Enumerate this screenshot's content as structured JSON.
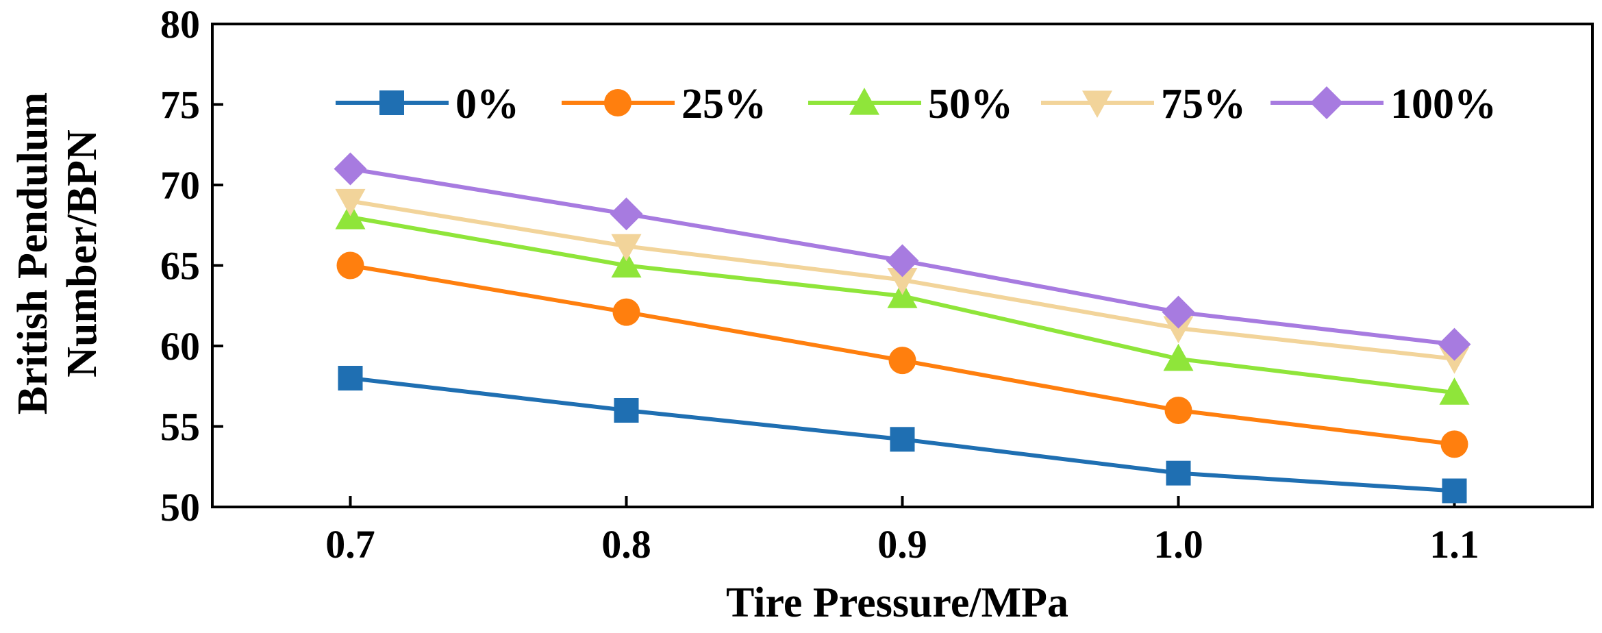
{
  "chart_data": {
    "type": "line",
    "title": "",
    "xlabel": "Tire Pressure/MPa",
    "ylabel_lines": [
      "British Pendulum",
      "Number/BPN"
    ],
    "x": [
      0.7,
      0.8,
      0.9,
      1.0,
      1.1
    ],
    "x_tick_labels": [
      "0.7",
      "0.8",
      "0.9",
      "1.0",
      "1.1"
    ],
    "xlim": [
      0.65,
      1.15
    ],
    "ylim": [
      50,
      80
    ],
    "y_ticks": [
      50,
      55,
      60,
      65,
      70,
      75,
      80
    ],
    "y_tick_labels": [
      "50",
      "55",
      "60",
      "65",
      "70",
      "75",
      "80"
    ],
    "grid": false,
    "legend_position": "top",
    "series": [
      {
        "name": "0%",
        "values": [
          58.0,
          56.0,
          54.2,
          52.1,
          51.0
        ],
        "color": "#1f6fb2",
        "marker": "square"
      },
      {
        "name": "25%",
        "values": [
          65.0,
          62.1,
          59.1,
          56.0,
          53.9
        ],
        "color": "#ff7f0e",
        "marker": "circle"
      },
      {
        "name": "50%",
        "values": [
          68.0,
          65.0,
          63.1,
          59.2,
          57.1
        ],
        "color": "#8fe53a",
        "marker": "triangle-up"
      },
      {
        "name": "75%",
        "values": [
          69.0,
          66.2,
          64.1,
          61.1,
          59.2
        ],
        "color": "#f2d49a",
        "marker": "triangle-down"
      },
      {
        "name": "100%",
        "values": [
          71.0,
          68.2,
          65.3,
          62.1,
          60.1
        ],
        "color": "#a77be0",
        "marker": "diamond"
      }
    ]
  }
}
